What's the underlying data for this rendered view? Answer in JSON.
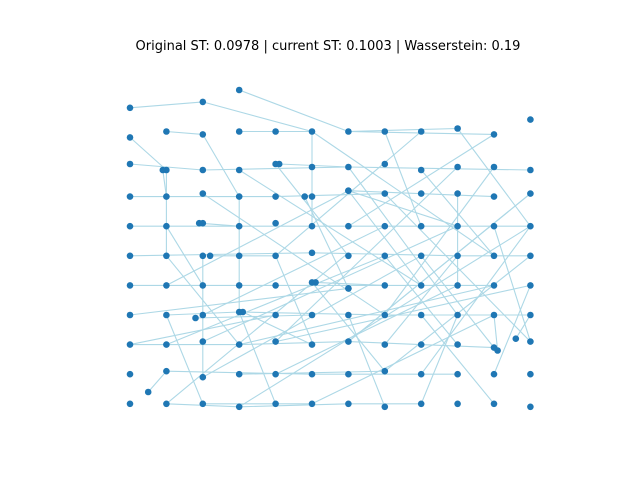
{
  "figure": {
    "title": "Original ST: 0.0978 | current ST: 0.1003 | Wasserstein: 0.19",
    "node_color": "#1f77b4",
    "edge_color": "#add8e6"
  },
  "graph": {
    "type": "network",
    "rows": [
      [
        [
          0,
          0.5
        ],
        [
          2,
          0.3
        ],
        [
          3.0,
          -0.1
        ]
      ],
      [
        [
          0,
          1.5
        ],
        [
          1,
          1.3
        ],
        [
          2,
          1.4
        ],
        [
          3,
          1.3
        ],
        [
          4,
          1.3
        ],
        [
          5,
          1.3
        ],
        [
          6,
          1.3
        ],
        [
          7,
          1.3
        ],
        [
          8,
          1.3
        ],
        [
          9,
          1.2
        ],
        [
          10,
          1.4
        ],
        [
          11,
          0.9
        ]
      ],
      [
        [
          0,
          2.4
        ],
        [
          1,
          2.6
        ],
        [
          2,
          2.6
        ],
        [
          3,
          2.6
        ],
        [
          4,
          2.4
        ],
        [
          5,
          2.5
        ],
        [
          6,
          2.5
        ],
        [
          7,
          2.4
        ],
        [
          8,
          2.6
        ],
        [
          9,
          2.5
        ],
        [
          10,
          2.5
        ],
        [
          11,
          2.6
        ]
      ],
      [
        [
          0,
          3.5
        ],
        [
          1,
          3.5
        ],
        [
          2,
          3.4
        ],
        [
          3,
          3.5
        ],
        [
          4,
          3.5
        ],
        [
          5,
          3.5
        ],
        [
          6,
          3.3
        ],
        [
          7,
          3.4
        ],
        [
          8,
          3.4
        ],
        [
          9,
          3.4
        ],
        [
          10,
          3.5
        ],
        [
          11,
          3.4
        ]
      ],
      [
        [
          0,
          4.5
        ],
        [
          1,
          4.5
        ],
        [
          2,
          4.4
        ],
        [
          3,
          4.5
        ],
        [
          4,
          4.4
        ],
        [
          5,
          4.5
        ],
        [
          6,
          4.5
        ],
        [
          7,
          4.5
        ],
        [
          8,
          4.5
        ],
        [
          9,
          4.5
        ],
        [
          10,
          4.5
        ],
        [
          11,
          4.5
        ]
      ],
      [
        [
          0,
          5.5
        ],
        [
          1,
          5.5
        ],
        [
          2,
          5.5
        ],
        [
          3,
          5.5
        ],
        [
          4,
          5.5
        ],
        [
          5,
          5.4
        ],
        [
          6,
          5.5
        ],
        [
          7,
          5.5
        ],
        [
          8,
          5.5
        ],
        [
          9,
          5.5
        ],
        [
          10,
          5.5
        ],
        [
          11,
          5.5
        ]
      ],
      [
        [
          0,
          6.5
        ],
        [
          1,
          6.5
        ],
        [
          2,
          6.5
        ],
        [
          3,
          6.5
        ],
        [
          4,
          6.5
        ],
        [
          5,
          6.4
        ],
        [
          6,
          6.6
        ],
        [
          7,
          6.5
        ],
        [
          8,
          6.5
        ],
        [
          9,
          6.5
        ],
        [
          10,
          6.5
        ],
        [
          11,
          6.5
        ]
      ],
      [
        [
          0,
          7.5
        ],
        [
          1,
          7.5
        ],
        [
          2,
          7.5
        ],
        [
          3,
          7.4
        ],
        [
          4,
          7.5
        ],
        [
          5,
          7.5
        ],
        [
          6,
          7.5
        ],
        [
          7,
          7.5
        ],
        [
          8,
          7.5
        ],
        [
          9,
          7.5
        ],
        [
          10,
          7.5
        ],
        [
          11,
          7.5
        ]
      ],
      [
        [
          0,
          8.5
        ],
        [
          1,
          8.5
        ],
        [
          2,
          8.4
        ],
        [
          3,
          8.5
        ],
        [
          4,
          8.4
        ],
        [
          5,
          8.5
        ],
        [
          6,
          8.4
        ],
        [
          7,
          8.5
        ],
        [
          8,
          8.5
        ],
        [
          9,
          8.5
        ],
        [
          10,
          8.6
        ],
        [
          11,
          8.4
        ]
      ],
      [
        [
          0,
          9.5
        ],
        [
          1,
          9.4
        ],
        [
          2,
          9.6
        ],
        [
          3,
          9.5
        ],
        [
          4,
          9.5
        ],
        [
          5,
          9.5
        ],
        [
          6,
          9.5
        ],
        [
          7,
          9.4
        ],
        [
          8,
          9.5
        ],
        [
          9,
          9.5
        ],
        [
          10,
          9.5
        ],
        [
          11,
          9.5
        ]
      ],
      [
        [
          0,
          10.5
        ],
        [
          1,
          10.5
        ],
        [
          2,
          10.5
        ],
        [
          3,
          10.6
        ],
        [
          4,
          10.5
        ],
        [
          5,
          10.5
        ],
        [
          6,
          10.5
        ],
        [
          7,
          10.6
        ],
        [
          8,
          10.5
        ],
        [
          9,
          10.5
        ],
        [
          10,
          10.5
        ],
        [
          11,
          10.6
        ]
      ]
    ],
    "extra_nodes": [
      [
        0.5,
        10.1
      ],
      [
        0.9,
        2.6
      ],
      [
        1.8,
        7.6
      ],
      [
        1.9,
        4.4
      ],
      [
        2.2,
        5.5
      ],
      [
        3.1,
        7.4
      ],
      [
        4.1,
        2.4
      ],
      [
        4.8,
        3.5
      ],
      [
        5.1,
        6.4
      ],
      [
        6.0,
        6.6
      ],
      [
        6.0,
        3.3
      ],
      [
        10.1,
        8.7
      ],
      [
        10.6,
        8.3
      ]
    ],
    "edges": [
      [
        [
          0,
          0.5
        ],
        [
          2,
          0.3
        ]
      ],
      [
        [
          3.0,
          -0.1
        ],
        [
          6,
          1.3
        ]
      ],
      [
        [
          2,
          0.3
        ],
        [
          5,
          1.3
        ]
      ],
      [
        [
          6,
          1.3
        ],
        [
          10,
          1.4
        ]
      ],
      [
        [
          0,
          1.5
        ],
        [
          1,
          2.6
        ]
      ],
      [
        [
          1,
          1.3
        ],
        [
          2,
          1.4
        ]
      ],
      [
        [
          3,
          1.3
        ],
        [
          5,
          1.3
        ]
      ],
      [
        [
          6,
          1.3
        ],
        [
          9,
          1.2
        ]
      ],
      [
        [
          0,
          2.4
        ],
        [
          2,
          2.6
        ]
      ],
      [
        [
          2,
          2.6
        ],
        [
          6,
          2.5
        ]
      ],
      [
        [
          6,
          2.5
        ],
        [
          11,
          2.6
        ]
      ],
      [
        [
          4.1,
          2.4
        ],
        [
          6,
          2.5
        ]
      ],
      [
        [
          0,
          3.5
        ],
        [
          1,
          3.5
        ]
      ],
      [
        [
          1,
          3.5
        ],
        [
          4,
          3.5
        ]
      ],
      [
        [
          4,
          3.5
        ],
        [
          7,
          3.4
        ]
      ],
      [
        [
          6,
          3.3
        ],
        [
          10,
          3.5
        ]
      ],
      [
        [
          0,
          4.5
        ],
        [
          3,
          4.5
        ]
      ],
      [
        [
          3,
          4.5
        ],
        [
          6,
          4.5
        ]
      ],
      [
        [
          6,
          4.5
        ],
        [
          11,
          4.5
        ]
      ],
      [
        [
          1.9,
          4.4
        ],
        [
          3,
          4.5
        ]
      ],
      [
        [
          0,
          5.5
        ],
        [
          5,
          5.4
        ]
      ],
      [
        [
          5,
          5.4
        ],
        [
          9,
          5.5
        ]
      ],
      [
        [
          9,
          5.5
        ],
        [
          11,
          5.5
        ]
      ],
      [
        [
          2.2,
          5.5
        ],
        [
          4,
          5.5
        ]
      ],
      [
        [
          0,
          6.5
        ],
        [
          4,
          6.5
        ]
      ],
      [
        [
          4,
          6.5
        ],
        [
          8,
          6.5
        ]
      ],
      [
        [
          8,
          6.5
        ],
        [
          10,
          6.5
        ]
      ],
      [
        [
          5.1,
          6.4
        ],
        [
          7,
          6.5
        ]
      ],
      [
        [
          1,
          7.5
        ],
        [
          3,
          7.4
        ]
      ],
      [
        [
          3,
          7.4
        ],
        [
          7,
          7.5
        ]
      ],
      [
        [
          7,
          7.5
        ],
        [
          11,
          7.5
        ]
      ],
      [
        [
          1.8,
          7.6
        ],
        [
          5,
          7.5
        ]
      ],
      [
        [
          0,
          8.5
        ],
        [
          3,
          8.5
        ]
      ],
      [
        [
          3,
          8.5
        ],
        [
          6,
          8.4
        ]
      ],
      [
        [
          6,
          8.4
        ],
        [
          10,
          8.6
        ]
      ],
      [
        [
          3.1,
          7.4
        ],
        [
          5,
          8.5
        ]
      ],
      [
        [
          1,
          9.4
        ],
        [
          5,
          9.5
        ]
      ],
      [
        [
          5,
          9.5
        ],
        [
          9,
          9.5
        ]
      ],
      [
        [
          0.5,
          10.1
        ],
        [
          1,
          9.4
        ]
      ],
      [
        [
          3,
          9.5
        ],
        [
          7,
          9.4
        ]
      ],
      [
        [
          1,
          10.5
        ],
        [
          3,
          10.6
        ]
      ],
      [
        [
          3,
          10.6
        ],
        [
          6,
          10.5
        ]
      ],
      [
        [
          2,
          10.5
        ],
        [
          5,
          10.5
        ]
      ],
      [
        [
          6,
          10.5
        ],
        [
          8,
          10.5
        ]
      ],
      [
        [
          1,
          2.6
        ],
        [
          1,
          5.5
        ]
      ],
      [
        [
          2,
          1.4
        ],
        [
          3,
          3.5
        ]
      ],
      [
        [
          5,
          1.3
        ],
        [
          5,
          4.5
        ]
      ],
      [
        [
          7,
          1.3
        ],
        [
          8,
          4.5
        ]
      ],
      [
        [
          9,
          1.2
        ],
        [
          11,
          4.5
        ]
      ],
      [
        [
          1,
          4.5
        ],
        [
          2,
          6.5
        ]
      ],
      [
        [
          3,
          3.5
        ],
        [
          3,
          7.4
        ]
      ],
      [
        [
          4,
          2.4
        ],
        [
          6,
          5.5
        ]
      ],
      [
        [
          6,
          3.3
        ],
        [
          8,
          6.5
        ]
      ],
      [
        [
          8,
          2.6
        ],
        [
          10,
          5.5
        ]
      ],
      [
        [
          9,
          3.4
        ],
        [
          9,
          6.5
        ]
      ],
      [
        [
          10,
          4.5
        ],
        [
          11,
          8.4
        ]
      ],
      [
        [
          1,
          5.5
        ],
        [
          3,
          8.5
        ]
      ],
      [
        [
          2,
          5.5
        ],
        [
          2,
          9.6
        ]
      ],
      [
        [
          4,
          5.5
        ],
        [
          5,
          8.4
        ]
      ],
      [
        [
          5,
          6.4
        ],
        [
          7,
          9.4
        ]
      ],
      [
        [
          7,
          5.5
        ],
        [
          9,
          8.5
        ]
      ],
      [
        [
          8,
          5.5
        ],
        [
          10,
          8.6
        ]
      ],
      [
        [
          1,
          7.5
        ],
        [
          2,
          10.5
        ]
      ],
      [
        [
          3,
          7.4
        ],
        [
          4,
          10.5
        ]
      ],
      [
        [
          6,
          7.5
        ],
        [
          7,
          10.6
        ]
      ],
      [
        [
          8,
          7.5
        ],
        [
          10,
          10.5
        ]
      ],
      [
        [
          9,
          7.5
        ],
        [
          8,
          10.5
        ]
      ],
      [
        [
          11,
          6.5
        ],
        [
          10,
          9.5
        ]
      ],
      [
        [
          1,
          6.5
        ],
        [
          6,
          3.3
        ]
      ],
      [
        [
          2,
          7.5
        ],
        [
          7,
          4.5
        ]
      ],
      [
        [
          1,
          10.5
        ],
        [
          6,
          5.4
        ]
      ],
      [
        [
          2,
          9.6
        ],
        [
          8,
          5.5
        ]
      ],
      [
        [
          4,
          9.5
        ],
        [
          9,
          6.5
        ]
      ],
      [
        [
          5,
          10.5
        ],
        [
          10,
          7.5
        ]
      ],
      [
        [
          3,
          10.6
        ],
        [
          11,
          4.5
        ]
      ],
      [
        [
          7,
          9.4
        ],
        [
          11,
          5.5
        ]
      ],
      [
        [
          5,
          1.3
        ],
        [
          10,
          5.5
        ]
      ],
      [
        [
          6,
          2.5
        ],
        [
          9,
          7.5
        ]
      ],
      [
        [
          7,
          3.4
        ],
        [
          11,
          8.4
        ]
      ],
      [
        [
          3,
          2.6
        ],
        [
          8,
          6.5
        ]
      ],
      [
        [
          2,
          3.4
        ],
        [
          7,
          7.5
        ]
      ],
      [
        [
          4.8,
          3.5
        ],
        [
          6,
          6.6
        ]
      ],
      [
        [
          10,
          2.5
        ],
        [
          7,
          7.5
        ]
      ],
      [
        [
          9,
          2.5
        ],
        [
          4,
          8.4
        ]
      ],
      [
        [
          11,
          3.4
        ],
        [
          6,
          8.4
        ]
      ],
      [
        [
          11,
          4.5
        ],
        [
          8,
          9.5
        ]
      ],
      [
        [
          10,
          1.4
        ],
        [
          6,
          4.5
        ]
      ],
      [
        [
          8,
          1.3
        ],
        [
          4,
          5.5
        ]
      ],
      [
        [
          0,
          7.5
        ],
        [
          6,
          6.6
        ]
      ],
      [
        [
          0,
          8.5
        ],
        [
          4,
          7.5
        ]
      ],
      [
        [
          1,
          8.5
        ],
        [
          7,
          5.5
        ]
      ],
      [
        [
          2,
          8.4
        ],
        [
          9,
          4.5
        ]
      ],
      [
        [
          3,
          8.5
        ],
        [
          10,
          6.5
        ]
      ],
      [
        [
          4,
          8.4
        ],
        [
          11,
          6.5
        ]
      ],
      [
        [
          6,
          8.4
        ],
        [
          11,
          3.4
        ]
      ],
      [
        [
          7,
          8.5
        ],
        [
          9,
          5.5
        ]
      ],
      [
        [
          10.1,
          8.7
        ],
        [
          10,
          7.5
        ]
      ],
      [
        [
          10.6,
          8.3
        ],
        [
          11,
          7.5
        ]
      ],
      [
        [
          6.0,
          3.3
        ],
        [
          9,
          4.5
        ]
      ],
      [
        [
          0.9,
          2.6
        ],
        [
          1,
          3.5
        ]
      ]
    ]
  }
}
